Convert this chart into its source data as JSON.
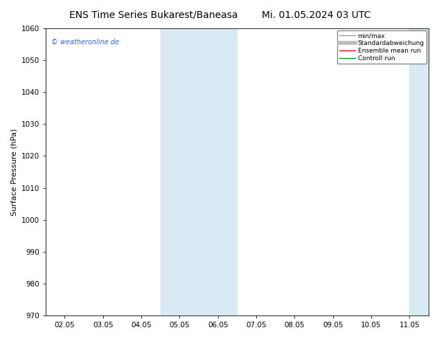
{
  "title_left": "ENS Time Series Bukarest/Baneasa",
  "title_right": "Mi. 01.05.2024 03 UTC",
  "ylabel": "Surface Pressure (hPa)",
  "watermark": "© weatheronline.de",
  "ylim": [
    970,
    1060
  ],
  "yticks": [
    970,
    980,
    990,
    1000,
    1010,
    1020,
    1030,
    1040,
    1050,
    1060
  ],
  "xtick_labels": [
    "02.05",
    "03.05",
    "04.05",
    "05.05",
    "06.05",
    "07.05",
    "08.05",
    "09.05",
    "10.05",
    "11.05"
  ],
  "shade_bands": [
    {
      "xmin": 2.5,
      "xmax": 4.5
    },
    {
      "xmin": 9.0,
      "xmax": 10.5
    }
  ],
  "shade_color": "#daeaf5",
  "background_color": "#ffffff",
  "legend_labels": [
    "min/max",
    "Standardabweichung",
    "Ensemble mean run",
    "Controll run"
  ],
  "legend_line_colors": [
    "#999999",
    "#bbbbbb",
    "#dd0000",
    "#009900"
  ],
  "grid_color": "#dddddd",
  "title_fontsize": 10,
  "watermark_color": "#3366cc",
  "axis_label_fontsize": 8,
  "tick_fontsize": 7.5
}
